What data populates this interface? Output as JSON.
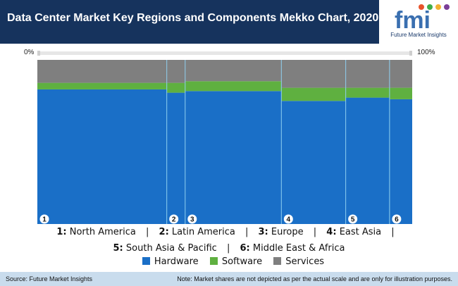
{
  "header": {
    "title": "Data Center Market Key Regions and Components Mekko Chart, 2020"
  },
  "logo": {
    "text": "Future Market Insights",
    "colors": [
      "#3a6fb0",
      "#e8532b",
      "#3fae49",
      "#f2b134",
      "#7b3f98"
    ]
  },
  "scale": {
    "min_label": "0%",
    "max_label": "100%"
  },
  "chart_data": {
    "type": "mekko",
    "categories": [
      "1",
      "2",
      "3",
      "4",
      "5",
      "6"
    ],
    "category_widths": [
      36.6,
      5.2,
      27.2,
      18.2,
      12.4,
      6.4
    ],
    "series": [
      {
        "name": "Hardware",
        "values": [
          82,
          80,
          81,
          75,
          77,
          76
        ],
        "color": "#1a6fc7"
      },
      {
        "name": "Software",
        "values": [
          4,
          6,
          6,
          8,
          6,
          7
        ],
        "color": "#5fb040"
      },
      {
        "name": "Services",
        "values": [
          14,
          14,
          13,
          17,
          17,
          17
        ],
        "color": "#7f7f7f"
      }
    ],
    "ylim": [
      0,
      100
    ]
  },
  "region_legend": {
    "line1": [
      {
        "num": "1:",
        "name": "North America"
      },
      {
        "num": "2:",
        "name": "Latin America"
      },
      {
        "num": "3:",
        "name": "Europe"
      },
      {
        "num": "4:",
        "name": "East Asia"
      }
    ],
    "line2": [
      {
        "num": "5:",
        "name": "South Asia & Pacific"
      },
      {
        "num": "6:",
        "name": "Middle East & Africa"
      }
    ]
  },
  "footer": {
    "source": "Source: Future Market Insights",
    "note": "Note: Market shares are not depicted as per the actual scale and are only for illustration purposes."
  }
}
